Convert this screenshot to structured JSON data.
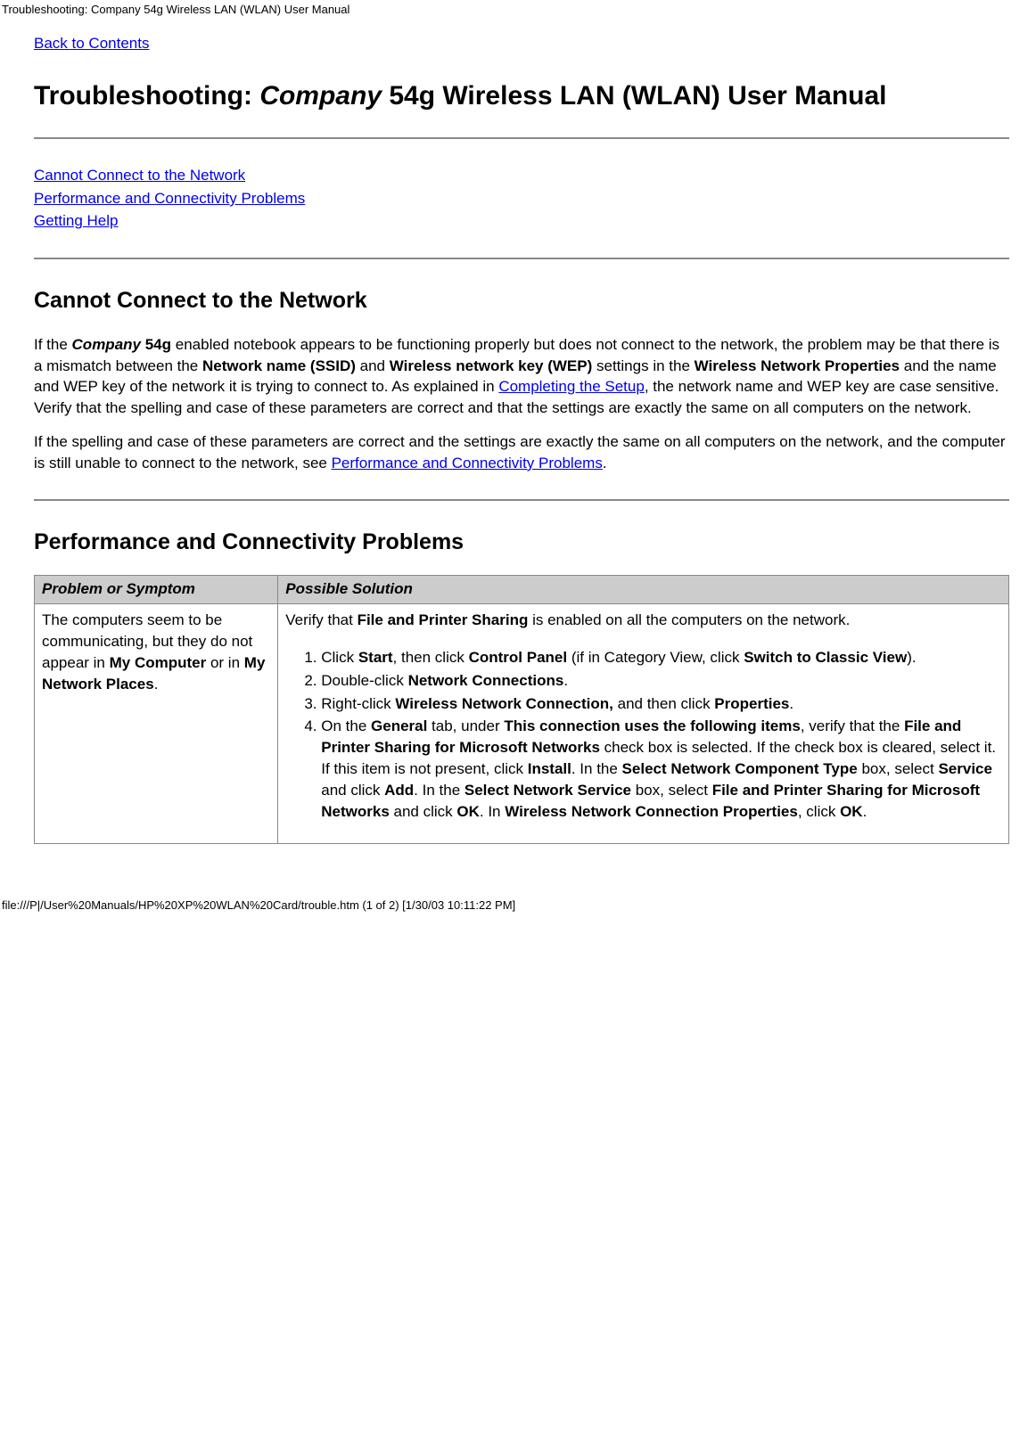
{
  "header": {
    "text": "Troubleshooting: Company 54g Wireless LAN (WLAN) User Manual"
  },
  "nav": {
    "back_link": "Back to Contents"
  },
  "title": {
    "prefix": "Troubleshooting: ",
    "company_italic": "Company",
    "suffix": " 54g Wireless LAN (WLAN) User Manual"
  },
  "toc": {
    "link1": "Cannot Connect to the Network",
    "link2": "Performance and Connectivity Problems",
    "link3": "Getting Help"
  },
  "section1": {
    "heading": "Cannot Connect to the Network",
    "p1_a": "If the ",
    "p1_company": "Company",
    "p1_b": " 54g",
    "p1_c": " enabled notebook appears to be functioning properly but does not connect to the network, the problem may be that there is a mismatch between the ",
    "p1_bold1": "Network name (SSID)",
    "p1_d": " and ",
    "p1_bold2": "Wireless network key (WEP)",
    "p1_e": " settings in the ",
    "p1_bold3": "Wireless Network Properties",
    "p1_f": " and the name and WEP key of the network it is trying to connect to. As explained in ",
    "p1_link": "Completing the Setup",
    "p1_g": ", the network name and WEP key are case sensitive. Verify that the spelling and case of these parameters are correct and that the settings are exactly the same on all computers on the network.",
    "p2_a": "If the spelling and case of these parameters are correct and the settings are exactly the same on all computers on the network, and the computer is still unable to connect to the network, see ",
    "p2_link": "Performance and Connectivity Problems",
    "p2_b": "."
  },
  "section2": {
    "heading": "Performance and Connectivity Problems",
    "table": {
      "header_problem": "Problem or Symptom",
      "header_solution": "Possible Solution",
      "row1": {
        "problem_a": "The computers seem to be communicating, but they do not appear in ",
        "problem_b1": "My Computer",
        "problem_b": " or in ",
        "problem_b2": "My Network Places",
        "problem_c": ".",
        "solution_intro_a": "Verify that ",
        "solution_intro_b1": "File and Printer Sharing",
        "solution_intro_b": " is enabled on all the computers on the network.",
        "steps": {
          "s1_a": "Click ",
          "s1_b1": "Start",
          "s1_b": ", then click ",
          "s1_b2": "Control Panel",
          "s1_c": " (if in Category View, click ",
          "s1_b3": "Switch to Classic View",
          "s1_d": ").",
          "s2_a": "Double-click ",
          "s2_b1": "Network Connections",
          "s2_b": ".",
          "s3_a": "Right-click ",
          "s3_b1": "Wireless Network Connection,",
          "s3_b": " and then click ",
          "s3_b2": "Properties",
          "s3_c": ".",
          "s4_a": "On the ",
          "s4_b1": "General",
          "s4_b": " tab, under ",
          "s4_b2": "This connection uses the following items",
          "s4_c": ", verify that the ",
          "s4_b3": "File and Printer Sharing for Microsoft Networks",
          "s4_d": " check box is selected. If the check box is cleared, select it. If this item is not present, click ",
          "s4_b4": "Install",
          "s4_e": ". In the ",
          "s4_b5": "Select Network Component Type",
          "s4_f": " box, select ",
          "s4_b6": "Service",
          "s4_g": " and click ",
          "s4_b7": "Add",
          "s4_h": ". In the ",
          "s4_b8": "Select Network Service",
          "s4_i": " box, select ",
          "s4_b9": "File and Printer Sharing for Microsoft Networks",
          "s4_j": " and click ",
          "s4_b10": "OK",
          "s4_k": ". In ",
          "s4_b11": "Wireless Network Connection Properties",
          "s4_l": ", click ",
          "s4_b12": "OK",
          "s4_m": "."
        }
      }
    }
  },
  "footer": {
    "text": "file:///P|/User%20Manuals/HP%20XP%20WLAN%20Card/trouble.htm (1 of 2) [1/30/03 10:11:22 PM]"
  }
}
